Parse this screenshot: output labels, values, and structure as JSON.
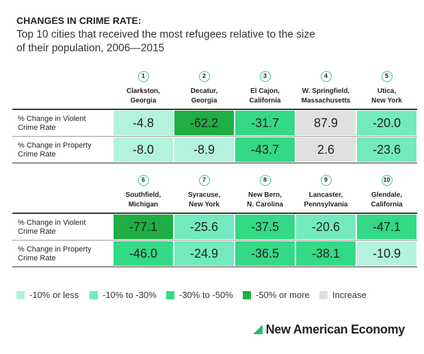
{
  "header": {
    "kicker": "CHANGES IN CRIME RATE:",
    "subtitle": [
      "Top 10 cities that received the most refugees relative to the size",
      "of their population, 2006—2015"
    ]
  },
  "tables": [
    {
      "cities": [
        {
          "rank": "1",
          "name": [
            "Clarkston,",
            "Georgia"
          ]
        },
        {
          "rank": "2",
          "name": [
            "Decatur,",
            "Georgia"
          ]
        },
        {
          "rank": "3",
          "name": [
            "El Cajon,",
            "California"
          ]
        },
        {
          "rank": "4",
          "name": [
            "W. Springfield,",
            "Massachusetts"
          ]
        },
        {
          "rank": "5",
          "name": [
            "Utica,",
            "New York"
          ]
        }
      ],
      "rows": [
        {
          "label": [
            "% Change in Violent",
            "Crime Rate"
          ],
          "cells": [
            {
              "value": "-4.8",
              "color": "#b3f2dc"
            },
            {
              "value": "-62.2",
              "color": "#1fae45"
            },
            {
              "value": "-31.7",
              "color": "#33d985"
            },
            {
              "value": "87.9",
              "color": "#e0e0e0"
            },
            {
              "value": "-20.0",
              "color": "#72eabe"
            }
          ]
        },
        {
          "label": [
            "% Change in Property",
            "Crime Rate"
          ],
          "cells": [
            {
              "value": "-8.0",
              "color": "#b3f2dc"
            },
            {
              "value": "-8.9",
              "color": "#b3f2dc"
            },
            {
              "value": "-43.7",
              "color": "#33d985"
            },
            {
              "value": "2.6",
              "color": "#e0e0e0"
            },
            {
              "value": "-23.6",
              "color": "#72eabe"
            }
          ]
        }
      ]
    },
    {
      "cities": [
        {
          "rank": "6",
          "name": [
            "Southfield,",
            "Michigan"
          ]
        },
        {
          "rank": "7",
          "name": [
            "Syracuse,",
            "New York"
          ]
        },
        {
          "rank": "8",
          "name": [
            "New Bern,",
            "N. Carolina"
          ]
        },
        {
          "rank": "9",
          "name": [
            "Lancaster,",
            "Pennsylvania"
          ]
        },
        {
          "rank": "10",
          "name": [
            "Glendale,",
            "California"
          ]
        }
      ],
      "rows": [
        {
          "label": [
            "% Change in Violent",
            "Crime Rate"
          ],
          "cells": [
            {
              "value": "-77.1",
              "color": "#1fae45"
            },
            {
              "value": "-25.6",
              "color": "#72eabe"
            },
            {
              "value": "-37.5",
              "color": "#33d985"
            },
            {
              "value": "-20.6",
              "color": "#72eabe"
            },
            {
              "value": "-47.1",
              "color": "#33d985"
            }
          ]
        },
        {
          "label": [
            "% Change in Property",
            "Crime Rate"
          ],
          "cells": [
            {
              "value": "-46.0",
              "color": "#33d985"
            },
            {
              "value": "-24.9",
              "color": "#72eabe"
            },
            {
              "value": "-36.5",
              "color": "#33d985"
            },
            {
              "value": "-38.1",
              "color": "#33d985"
            },
            {
              "value": "-10.9",
              "color": "#b3f2dc"
            }
          ]
        }
      ]
    }
  ],
  "legend": [
    {
      "label": "-10% or less",
      "color": "#b3f2dc"
    },
    {
      "label": "-10% to -30%",
      "color": "#72eabe"
    },
    {
      "label": "-30% to -50%",
      "color": "#33d985"
    },
    {
      "label": "-50% or more",
      "color": "#1fae45"
    },
    {
      "label": "Increase",
      "color": "#e0e0e0"
    }
  ],
  "footer": {
    "brand": "New American Economy"
  }
}
